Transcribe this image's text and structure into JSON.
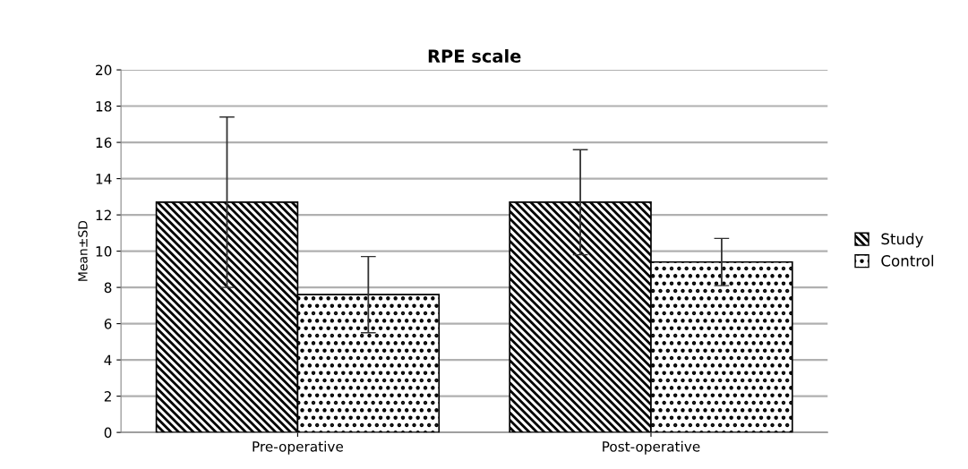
{
  "chart_data": {
    "type": "bar",
    "title": "RPE scale",
    "ylabel": "Mean±SD",
    "categories": [
      "Pre-operative",
      "Post-operative"
    ],
    "series": [
      {
        "name": "Study",
        "color": "#000000",
        "values": [
          12.7,
          12.7
        ],
        "errors": [
          4.7,
          2.9
        ]
      },
      {
        "name": "Control",
        "color": "#000000",
        "values": [
          7.6,
          9.4
        ],
        "errors": [
          2.1,
          1.3
        ]
      }
    ],
    "ylim": [
      0,
      20
    ],
    "yticks": [
      0,
      2,
      4,
      6,
      8,
      10,
      12,
      14,
      16,
      18,
      20
    ],
    "grid": "y",
    "legend": "right"
  }
}
